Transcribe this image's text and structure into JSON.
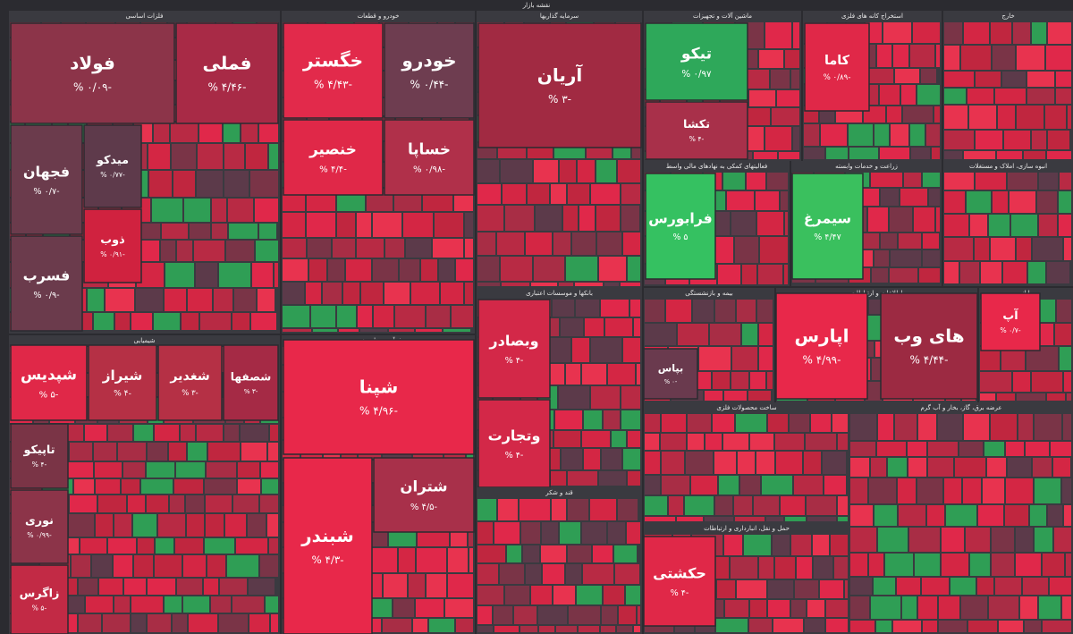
{
  "title": "نقشه بازار",
  "sectors": [
    {
      "name": "فلزات اساسی",
      "tiles": [
        {
          "symbol": "فولاد",
          "change": "-۰/۰۹ %",
          "color": "#8c3449"
        },
        {
          "symbol": "فملی",
          "change": "-۴/۴۶ %",
          "color": "#a82a46"
        },
        {
          "symbol": "فجهان",
          "change": "-۰/۷ %",
          "color": "#6b3b4c"
        },
        {
          "symbol": "میدکو",
          "change": "-۰/۷۷ %",
          "color": "#5e3a4b"
        },
        {
          "symbol": "ذوب",
          "change": "-۰/۹۱ %",
          "color": "#d0223f"
        },
        {
          "symbol": "فسرب",
          "change": "-۰/۹ %",
          "color": "#6b3b4c"
        }
      ]
    },
    {
      "name": "خودرو و قطعات",
      "tiles": [
        {
          "symbol": "خگستر",
          "change": "-۴/۴۳ %",
          "color": "#e22a4b"
        },
        {
          "symbol": "خودرو",
          "change": "-۰/۴۴ %",
          "color": "#6e3d50"
        },
        {
          "symbol": "خنصیر",
          "change": "-۴/۴ %",
          "color": "#e02848"
        },
        {
          "symbol": "خساپا",
          "change": "-۰/۹۸ %",
          "color": "#b0304a"
        }
      ]
    },
    {
      "name": "سرمایه گذاریها",
      "tiles": [
        {
          "symbol": "آریان",
          "change": "-۳ %",
          "color": "#a12a42"
        }
      ]
    },
    {
      "name": "ماشین آلات و تجهیزات",
      "tiles": [
        {
          "symbol": "تیکو",
          "change": "۰/۹۷ %",
          "color": "#2ea85a"
        },
        {
          "symbol": "تکشا",
          "change": "-۴ %",
          "color": "#a8304a"
        }
      ]
    },
    {
      "name": "استخراج کانه های فلزی",
      "tiles": [
        {
          "symbol": "کاما",
          "change": "-۰/۸۹ %",
          "color": "#e02848"
        }
      ]
    },
    {
      "name": "خارج",
      "tiles": []
    },
    {
      "name": "فعالیتهای کمکی به نهادهای مالی واسط",
      "tiles": [
        {
          "symbol": "فرابورس",
          "change": "۵ %",
          "color": "#35c161"
        }
      ]
    },
    {
      "name": "زراعت و خدمات وابسته",
      "tiles": [
        {
          "symbol": "سیمرغ",
          "change": "۴/۴۷ %",
          "color": "#3ac05e"
        }
      ]
    },
    {
      "name": "انبوه سازی، املاک و مستغلات",
      "tiles": []
    },
    {
      "name": "شیمیایی",
      "tiles": [
        {
          "symbol": "شپدیس",
          "change": "-۵ %",
          "color": "#e02848"
        },
        {
          "symbol": "شیراز",
          "change": "-۴ %",
          "color": "#b53045"
        },
        {
          "symbol": "شغدیر",
          "change": "-۳ %",
          "color": "#b53045"
        },
        {
          "symbol": "شصفها",
          "change": "-۳ %",
          "color": "#a52a45"
        },
        {
          "symbol": "تاپیکو",
          "change": "-۴ %",
          "color": "#7a3446"
        },
        {
          "symbol": "نوری",
          "change": "-۰/۹۹ %",
          "color": "#8c3449"
        },
        {
          "symbol": "زاگرس",
          "change": "-۵ %",
          "color": "#c22a45"
        }
      ]
    },
    {
      "name": "فرآورده های نفتی",
      "tiles": [
        {
          "symbol": "شپنا",
          "change": "-۴/۹۶ %",
          "color": "#e8284a"
        },
        {
          "symbol": "شبندر",
          "change": "-۴/۳ %",
          "color": "#e8284a"
        },
        {
          "symbol": "شتران",
          "change": "-۴/۵ %",
          "color": "#a8304a"
        }
      ]
    },
    {
      "name": "بانکها و موسسات اعتباری",
      "tiles": [
        {
          "symbol": "وبصادر",
          "change": "-۴ %",
          "color": "#d32848"
        },
        {
          "symbol": "وتجارت",
          "change": "-۴ %",
          "color": "#d32848"
        }
      ]
    },
    {
      "name": "بیمه و بازنشستگی",
      "tiles": [
        {
          "symbol": "بپاس",
          "change": "-۰ %",
          "color": "#6a3a4e"
        }
      ]
    },
    {
      "name": "اطلاعات و ارتباطات",
      "tiles": [
        {
          "symbol": "اپارس",
          "change": "-۴/۹۹ %",
          "color": "#e8284a"
        },
        {
          "symbol": "های وب",
          "change": "-۴/۴۴ %",
          "color": "#9c2a42"
        }
      ]
    },
    {
      "name": "رایانه",
      "tiles": [
        {
          "symbol": "آپ",
          "change": "-۰/۷ %",
          "color": "#e8284a"
        }
      ]
    },
    {
      "name": "حمل و نقل، انبارداری و ارتباطات",
      "tiles": [
        {
          "symbol": "حکشتی",
          "change": "-۴ %",
          "color": "#e02848"
        }
      ]
    },
    {
      "name": "عرضه برق، گاز، بخار و آب گرم",
      "tiles": []
    },
    {
      "name": "قند و شکر",
      "tiles": []
    },
    {
      "name": "ساخت محصولات فلزی",
      "tiles": []
    }
  ]
}
